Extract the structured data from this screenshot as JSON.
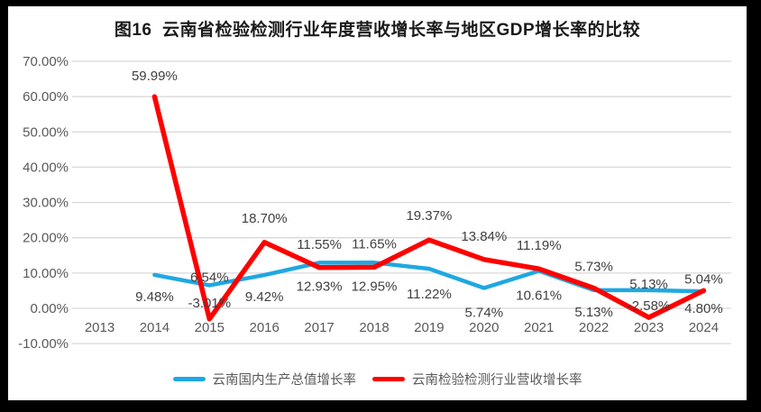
{
  "frame": {
    "border_color": "#000000",
    "panel_color": "#ffffff"
  },
  "chart_data": {
    "type": "line",
    "title": "图16  云南省检验检测行业年度营收增长率与地区GDP增长率的比较",
    "categories": [
      "2013",
      "2014",
      "2015",
      "2016",
      "2017",
      "2018",
      "2019",
      "2020",
      "2021",
      "2022",
      "2023",
      "2024"
    ],
    "y_ticks": [
      "70.00%",
      "60.00%",
      "50.00%",
      "40.00%",
      "30.00%",
      "20.00%",
      "10.00%",
      "0.00%",
      "-10.00%"
    ],
    "y_tick_values": [
      70,
      60,
      50,
      40,
      30,
      20,
      10,
      0,
      -10
    ],
    "ylim": [
      -10,
      70
    ],
    "y_step": 10,
    "grid": true,
    "legend_position": "bottom",
    "colors": {
      "gridline": "#d9d9d9",
      "axis_text": "#595959",
      "data_label_text": "#404040"
    },
    "series": [
      {
        "id": "gdp",
        "name": "云南国内生产总值增长率",
        "color": "#1fa8e1",
        "values": [
          null,
          9.48,
          6.54,
          9.42,
          12.93,
          12.95,
          11.22,
          5.74,
          10.61,
          5.13,
          5.13,
          4.8
        ],
        "labels": [
          null,
          "9.48%",
          "6.54%",
          "9.42%",
          "12.93%",
          "12.95%",
          "11.22%",
          "5.74%",
          "10.61%",
          "5.13%",
          "5.13%",
          "4.80%"
        ],
        "label_positions": [
          null,
          "below",
          "above",
          "below",
          "below",
          "below",
          "below",
          "below",
          "below",
          "below",
          "above",
          "below"
        ],
        "label_dy": [
          null,
          29,
          -4,
          29,
          31,
          31,
          33,
          32,
          32,
          29,
          -2,
          24
        ]
      },
      {
        "id": "industry",
        "name": "云南检验检测行业营收增长率",
        "color": "#ff0000",
        "values": [
          null,
          59.99,
          -3.01,
          18.7,
          11.55,
          11.65,
          19.37,
          13.84,
          11.19,
          5.73,
          -2.58,
          5.04
        ],
        "labels": [
          null,
          "59.99%",
          "-3.01%",
          "18.70%",
          "11.55%",
          "11.65%",
          "19.37%",
          "13.84%",
          "11.19%",
          "5.73%",
          "-2.58%",
          "5.04%"
        ],
        "label_positions": [
          null,
          "above",
          "above",
          "above",
          "above",
          "above",
          "above",
          "above",
          "above",
          "above",
          "above",
          "above"
        ],
        "label_dy": [
          null,
          -18,
          -13,
          -22,
          -21,
          -21,
          -22,
          -21,
          -21,
          -19,
          -8,
          -8
        ]
      }
    ]
  }
}
